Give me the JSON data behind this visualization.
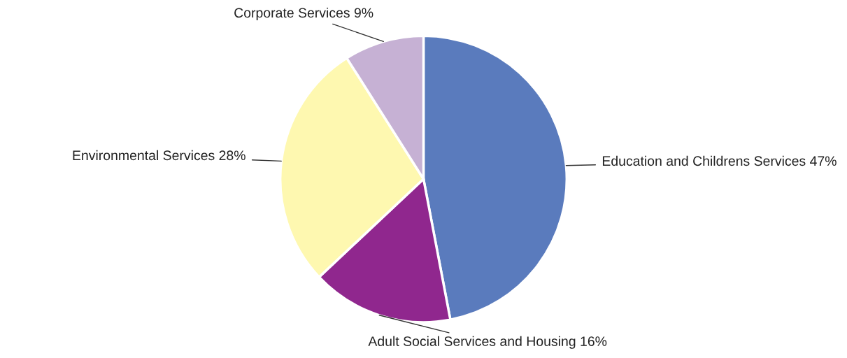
{
  "chart_data": {
    "type": "pie",
    "categories": [
      "Education and Childrens Services",
      "Adult Social Services and Housing",
      "Environmental Services",
      "Corporate Services"
    ],
    "values": [
      47,
      16,
      28,
      9
    ],
    "value_labels": [
      "47%",
      "16%",
      "28%",
      "9%"
    ],
    "colors": [
      "#5a7bbd",
      "#90278e",
      "#fef8b0",
      "#c6b1d4"
    ]
  }
}
